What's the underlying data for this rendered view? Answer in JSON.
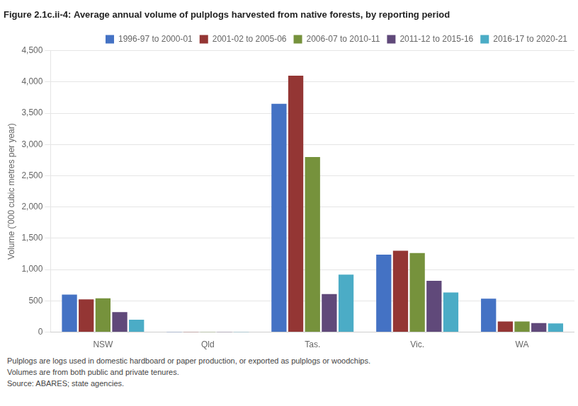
{
  "chart_data": {
    "type": "bar",
    "title": "Figure 2.1c.ii-4: Average annual volume of pulplogs harvested from native forests, by reporting period",
    "y_label": "Volume (’000 cubic metres per year)",
    "categories": [
      "NSW",
      "Qld",
      "Tas.",
      "Vic.",
      "WA"
    ],
    "series": [
      {
        "name": "1996-97 to 2000-01",
        "color": "#4472C4",
        "values": [
          600,
          2,
          3650,
          1240,
          535
        ]
      },
      {
        "name": "2001-02 to 2005-06",
        "color": "#943634",
        "values": [
          525,
          2,
          4100,
          1300,
          170
        ]
      },
      {
        "name": "2006-07 to 2010-11",
        "color": "#76923C",
        "values": [
          540,
          2,
          2800,
          1265,
          170
        ]
      },
      {
        "name": "2011-12 to 2015-16",
        "color": "#60497A",
        "values": [
          320,
          2,
          610,
          820,
          145
        ]
      },
      {
        "name": "2016-17 to 2020-21",
        "color": "#4BACC6",
        "values": [
          200,
          2,
          920,
          635,
          140
        ]
      }
    ],
    "ylim": [
      0,
      4500
    ],
    "yticks": [
      0,
      500,
      {
        "value": 1000,
        "label": "1,000"
      },
      {
        "value": 1500,
        "label": "1,500"
      },
      {
        "value": 2000,
        "label": "2,000"
      },
      {
        "value": 2500,
        "label": "2,500"
      },
      {
        "value": 3000,
        "label": "3,000"
      },
      {
        "value": 3500,
        "label": "3,500"
      },
      {
        "value": 4000,
        "label": "4,000"
      },
      {
        "value": 4500,
        "label": "4,500"
      }
    ],
    "grid": true,
    "legend": "upper right",
    "annotations": [
      "Pulplogs are logs used in domestic hardboard or paper production, or exported as pulplogs or woodchips.",
      "Volumes are from both public and private tenures.",
      "Source: ABARES; state agencies."
    ]
  }
}
